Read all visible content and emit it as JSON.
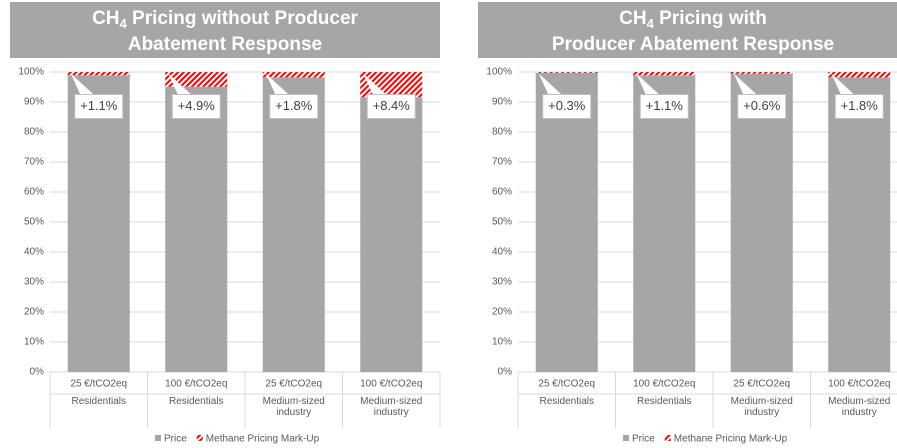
{
  "chart_data": [
    {
      "type": "stacked_bar",
      "title_parts": [
        "CH",
        "4",
        " Pricing without Producer",
        "Abatement Response"
      ],
      "categories": [
        "25 €/tCO2eq",
        "100 €/tCO2eq",
        "25 €/tCO2eq",
        "100 €/tCO2eq"
      ],
      "groups": [
        "Residentials",
        "Residentials",
        "Medium-sized industry",
        "Medium-sized industry"
      ],
      "series": [
        {
          "name": "Price",
          "color": "#a6a6a6",
          "values": [
            98.9,
            95.1,
            98.2,
            91.6
          ]
        },
        {
          "name": "Methane Pricing Mark-Up",
          "color": "#ff0000",
          "hatch": true,
          "values": [
            1.1,
            4.9,
            1.8,
            8.4
          ],
          "value_labels": [
            "+1.1%",
            "+4.9%",
            "+1.8%",
            "+8.4%"
          ]
        }
      ],
      "ylim": [
        0,
        100
      ],
      "yticks": [
        {
          "value": 0,
          "label": "0%"
        },
        {
          "value": 10,
          "label": "10%"
        },
        {
          "value": 20,
          "label": "20%"
        },
        {
          "value": 30,
          "label": "30%"
        },
        {
          "value": 40,
          "label": "40%"
        },
        {
          "value": 50,
          "label": "50%"
        },
        {
          "value": 60,
          "label": "60%"
        },
        {
          "value": 70,
          "label": "70%"
        },
        {
          "value": 80,
          "label": "80%"
        },
        {
          "value": 90,
          "label": "90%"
        },
        {
          "value": 100,
          "label": "100%"
        }
      ],
      "grid": true,
      "legend": "bottom"
    },
    {
      "type": "stacked_bar",
      "title_parts": [
        "CH",
        "4",
        " Pricing with",
        "Producer Abatement Response"
      ],
      "categories": [
        "25 €/tCO2eq",
        "100 €/tCO2eq",
        "25 €/tCO2eq",
        "100 €/tCO2eq"
      ],
      "groups": [
        "Residentials",
        "Residentials",
        "Medium-sized industry",
        "Medium-sized industry"
      ],
      "series": [
        {
          "name": "Price",
          "color": "#a6a6a6",
          "values": [
            99.7,
            98.9,
            99.4,
            98.2
          ]
        },
        {
          "name": "Methane Pricing Mark-Up",
          "color": "#ff0000",
          "hatch": true,
          "values": [
            0.3,
            1.1,
            0.6,
            1.8
          ],
          "value_labels": [
            "+0.3%",
            "+1.1%",
            "+0.6%",
            "+1.8%"
          ]
        }
      ],
      "ylim": [
        0,
        100
      ],
      "yticks": [
        {
          "value": 0,
          "label": "0%"
        },
        {
          "value": 10,
          "label": "10%"
        },
        {
          "value": 20,
          "label": "20%"
        },
        {
          "value": 30,
          "label": "30%"
        },
        {
          "value": 40,
          "label": "40%"
        },
        {
          "value": 50,
          "label": "50%"
        },
        {
          "value": 60,
          "label": "60%"
        },
        {
          "value": 70,
          "label": "70%"
        },
        {
          "value": 80,
          "label": "80%"
        },
        {
          "value": 90,
          "label": "90%"
        },
        {
          "value": 100,
          "label": "100%"
        }
      ],
      "grid": true,
      "legend": "bottom"
    }
  ]
}
